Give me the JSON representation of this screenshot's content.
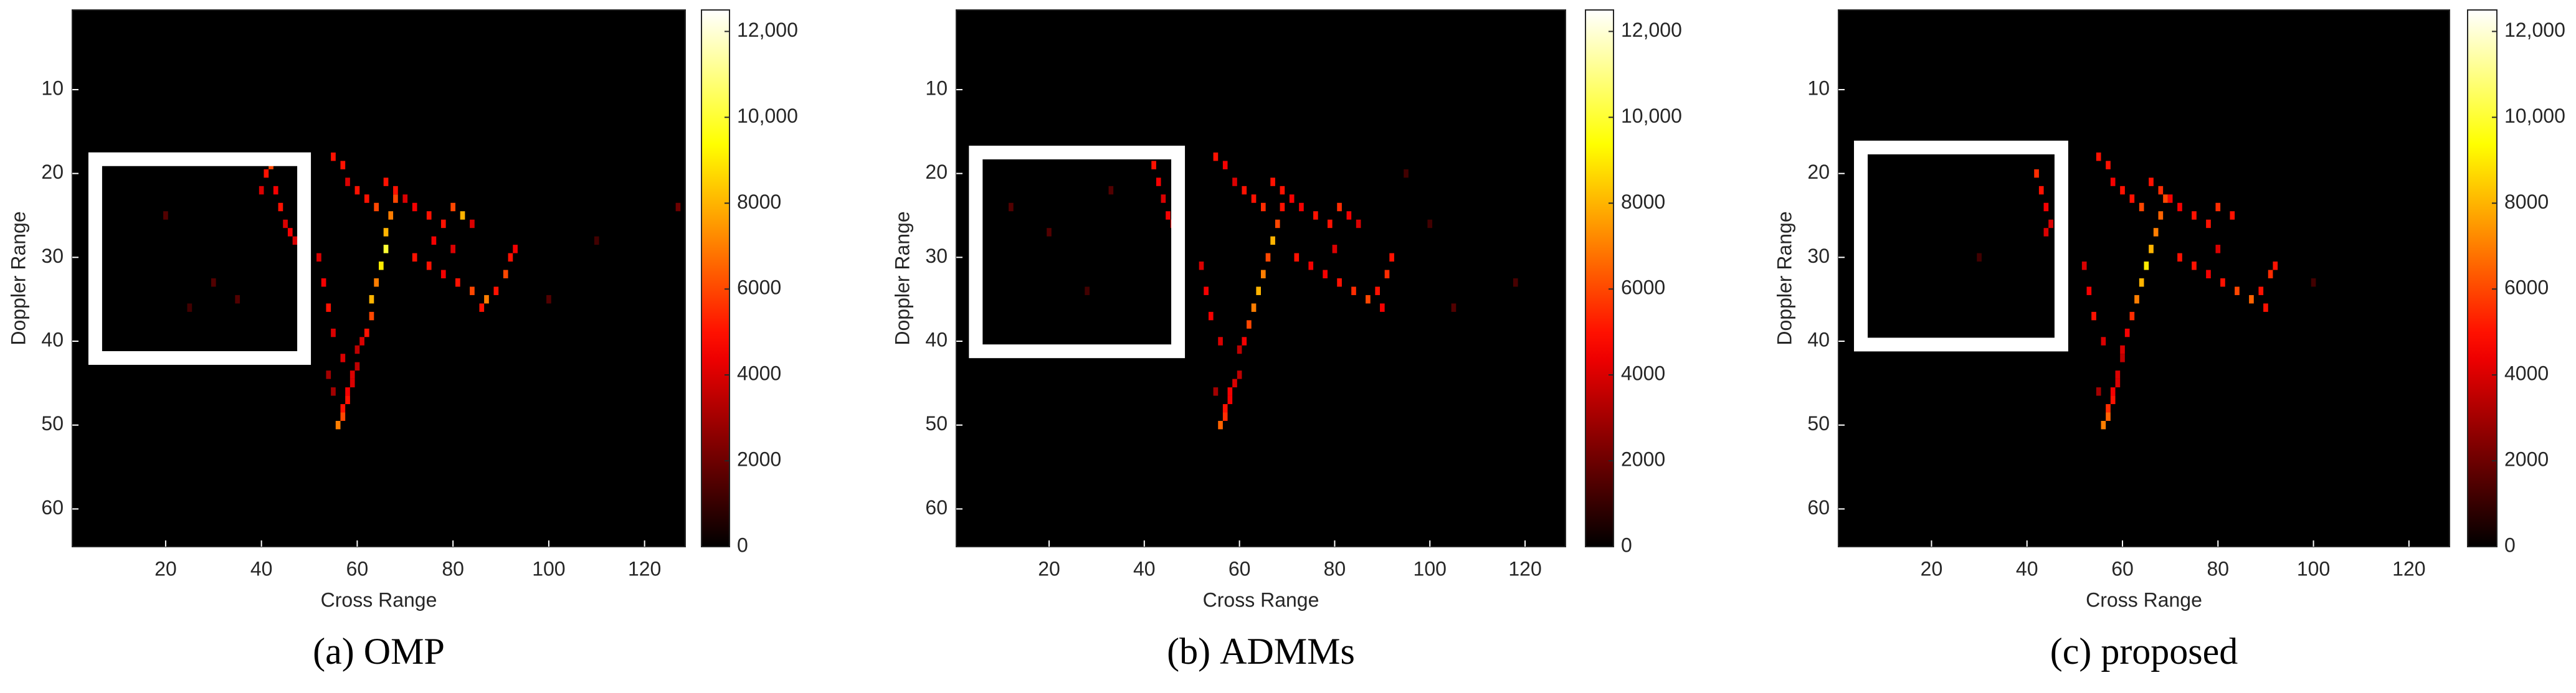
{
  "chart_data": [
    {
      "type": "heatmap",
      "caption_label": "(a)",
      "caption_text": "OMP",
      "xlabel": "Cross Range",
      "ylabel": "Doppler Range",
      "xlim": [
        0.5,
        128.5
      ],
      "ylim": [
        64.5,
        0.5
      ],
      "xticks": [
        20,
        40,
        60,
        80,
        100,
        120
      ],
      "yticks": [
        10,
        20,
        30,
        40,
        50,
        60
      ],
      "colormap": "hot",
      "clim": [
        0,
        12500
      ],
      "cticks": [
        0,
        2000,
        4000,
        6000,
        8000,
        {
          "value": 10000,
          "label": "10,000"
        },
        {
          "value": 12000,
          "label": "12,000"
        }
      ],
      "highlight_box": {
        "x": [
          5.3,
          48.9
        ],
        "y": [
          18.3,
          42
        ],
        "color": "#ffffff"
      },
      "cells": [
        [
          56,
          50,
          7000
        ],
        [
          57,
          49,
          6000
        ],
        [
          57,
          48,
          5000
        ],
        [
          58,
          47,
          5000
        ],
        [
          58,
          46,
          4500
        ],
        [
          59,
          45,
          4000
        ],
        [
          59,
          44,
          4000
        ],
        [
          60,
          43,
          3500
        ],
        [
          55,
          46,
          3000
        ],
        [
          54,
          44,
          3000
        ],
        [
          60,
          41,
          3500
        ],
        [
          61,
          40,
          4000
        ],
        [
          62,
          39,
          5000
        ],
        [
          63,
          37,
          6000
        ],
        [
          63,
          35,
          8000
        ],
        [
          64,
          33,
          7000
        ],
        [
          65,
          31,
          9000
        ],
        [
          66,
          29,
          10000
        ],
        [
          66,
          27,
          8000
        ],
        [
          67,
          25,
          7000
        ],
        [
          68,
          23,
          6000
        ],
        [
          55,
          18,
          5000
        ],
        [
          57,
          19,
          5000
        ],
        [
          58,
          21,
          4000
        ],
        [
          60,
          22,
          5000
        ],
        [
          62,
          23,
          5000
        ],
        [
          64,
          24,
          6000
        ],
        [
          66,
          21,
          5000
        ],
        [
          68,
          22,
          5000
        ],
        [
          70,
          23,
          4000
        ],
        [
          72,
          24,
          4500
        ],
        [
          75,
          25,
          5000
        ],
        [
          78,
          26,
          5000
        ],
        [
          80,
          24,
          6000
        ],
        [
          82,
          25,
          8000
        ],
        [
          84,
          26,
          4000
        ],
        [
          72,
          30,
          5000
        ],
        [
          75,
          31,
          5000
        ],
        [
          78,
          32,
          4500
        ],
        [
          81,
          33,
          5000
        ],
        [
          84,
          34,
          6000
        ],
        [
          87,
          35,
          7000
        ],
        [
          89,
          34,
          5000
        ],
        [
          91,
          32,
          6000
        ],
        [
          92,
          30,
          5000
        ],
        [
          93,
          29,
          4500
        ],
        [
          86,
          36,
          5000
        ],
        [
          80,
          29,
          4000
        ],
        [
          76,
          28,
          4500
        ],
        [
          52,
          30,
          4000
        ],
        [
          53,
          33,
          4500
        ],
        [
          54,
          36,
          5000
        ],
        [
          55,
          39,
          4000
        ],
        [
          57,
          42,
          4000
        ],
        [
          41,
          20,
          5000
        ],
        [
          42,
          19,
          6000
        ],
        [
          43,
          22,
          4500
        ],
        [
          44,
          24,
          5000
        ],
        [
          45,
          26,
          4000
        ],
        [
          46,
          27,
          4500
        ],
        [
          47,
          28,
          4000
        ],
        [
          40,
          22,
          4000
        ],
        [
          20,
          25,
          1500
        ],
        [
          30,
          33,
          1500
        ],
        [
          25,
          36,
          1200
        ],
        [
          100,
          35,
          1500
        ],
        [
          110,
          28,
          1200
        ],
        [
          127,
          24,
          2000
        ],
        [
          35,
          35,
          1500
        ]
      ]
    },
    {
      "type": "heatmap",
      "caption_label": "(b)",
      "caption_text": "ADMMs",
      "xlabel": "Cross Range",
      "ylabel": "Doppler Range",
      "xlim": [
        0.5,
        128.5
      ],
      "ylim": [
        64.5,
        0.5
      ],
      "xticks": [
        20,
        40,
        60,
        80,
        100,
        120
      ],
      "yticks": [
        10,
        20,
        30,
        40,
        50,
        60
      ],
      "colormap": "hot",
      "clim": [
        0,
        12500
      ],
      "cticks": [
        0,
        2000,
        4000,
        6000,
        8000,
        {
          "value": 10000,
          "label": "10,000"
        },
        {
          "value": 12000,
          "label": "12,000"
        }
      ],
      "highlight_box": {
        "x": [
          4.6,
          47.1
        ],
        "y": [
          17.5,
          41.2
        ],
        "color": "#ffffff"
      },
      "cells": [
        [
          56,
          50,
          6500
        ],
        [
          57,
          49,
          5500
        ],
        [
          57,
          48,
          5000
        ],
        [
          58,
          47,
          4500
        ],
        [
          58,
          46,
          4500
        ],
        [
          59,
          45,
          4000
        ],
        [
          60,
          44,
          3500
        ],
        [
          55,
          46,
          3000
        ],
        [
          60,
          41,
          3500
        ],
        [
          61,
          40,
          4500
        ],
        [
          62,
          38,
          6000
        ],
        [
          63,
          36,
          7000
        ],
        [
          64,
          34,
          8000
        ],
        [
          65,
          32,
          7000
        ],
        [
          66,
          30,
          6000
        ],
        [
          67,
          28,
          8000
        ],
        [
          68,
          26,
          6000
        ],
        [
          69,
          24,
          5000
        ],
        [
          55,
          18,
          5000
        ],
        [
          57,
          19,
          4500
        ],
        [
          59,
          21,
          4000
        ],
        [
          61,
          22,
          5000
        ],
        [
          63,
          23,
          5000
        ],
        [
          65,
          24,
          5500
        ],
        [
          67,
          21,
          5000
        ],
        [
          69,
          22,
          5000
        ],
        [
          71,
          23,
          4500
        ],
        [
          73,
          24,
          4500
        ],
        [
          76,
          25,
          5000
        ],
        [
          79,
          26,
          5000
        ],
        [
          81,
          24,
          5500
        ],
        [
          83,
          25,
          4500
        ],
        [
          85,
          26,
          4000
        ],
        [
          72,
          30,
          5000
        ],
        [
          75,
          31,
          4500
        ],
        [
          78,
          32,
          4500
        ],
        [
          81,
          33,
          5000
        ],
        [
          84,
          34,
          5500
        ],
        [
          87,
          35,
          6000
        ],
        [
          89,
          34,
          5000
        ],
        [
          91,
          32,
          5500
        ],
        [
          92,
          30,
          5000
        ],
        [
          90,
          36,
          4500
        ],
        [
          80,
          29,
          4000
        ],
        [
          52,
          31,
          4000
        ],
        [
          53,
          34,
          4500
        ],
        [
          54,
          37,
          4500
        ],
        [
          56,
          40,
          4000
        ],
        [
          42,
          19,
          5000
        ],
        [
          43,
          21,
          4500
        ],
        [
          44,
          23,
          4000
        ],
        [
          45,
          25,
          4500
        ],
        [
          46,
          26,
          4000
        ],
        [
          12,
          24,
          1500
        ],
        [
          20,
          27,
          1500
        ],
        [
          28,
          34,
          1200
        ],
        [
          33,
          22,
          1500
        ],
        [
          100,
          26,
          1200
        ],
        [
          105,
          36,
          1500
        ],
        [
          118,
          33,
          1300
        ],
        [
          95,
          20,
          1200
        ]
      ]
    },
    {
      "type": "heatmap",
      "caption_label": "(c)",
      "caption_text": "proposed",
      "xlabel": "Cross Range",
      "ylabel": "Doppler Range",
      "xlim": [
        0.5,
        128.5
      ],
      "ylim": [
        64.5,
        0.5
      ],
      "xticks": [
        20,
        40,
        60,
        80,
        100,
        120
      ],
      "yticks": [
        10,
        20,
        30,
        40,
        50,
        60
      ],
      "colormap": "hot",
      "clim": [
        0,
        12500
      ],
      "cticks": [
        0,
        2000,
        4000,
        6000,
        8000,
        {
          "value": 10000,
          "label": "10,000"
        },
        {
          "value": 12000,
          "label": "12,000"
        }
      ],
      "highlight_box": {
        "x": [
          5.2,
          47.2
        ],
        "y": [
          16.9,
          40.4
        ],
        "color": "#ffffff"
      },
      "cells": [
        [
          56,
          50,
          7000
        ],
        [
          57,
          49,
          6500
        ],
        [
          57,
          48,
          5500
        ],
        [
          58,
          47,
          5000
        ],
        [
          58,
          46,
          4500
        ],
        [
          59,
          45,
          4000
        ],
        [
          59,
          44,
          4000
        ],
        [
          60,
          42,
          3500
        ],
        [
          55,
          46,
          3000
        ],
        [
          60,
          41,
          4000
        ],
        [
          61,
          39,
          4500
        ],
        [
          62,
          37,
          5500
        ],
        [
          63,
          35,
          7000
        ],
        [
          64,
          33,
          8000
        ],
        [
          65,
          31,
          9000
        ],
        [
          66,
          29,
          8000
        ],
        [
          67,
          27,
          7000
        ],
        [
          68,
          25,
          6500
        ],
        [
          69,
          23,
          6000
        ],
        [
          55,
          18,
          5000
        ],
        [
          57,
          19,
          5000
        ],
        [
          58,
          21,
          4500
        ],
        [
          60,
          22,
          5000
        ],
        [
          62,
          23,
          5000
        ],
        [
          64,
          24,
          6000
        ],
        [
          66,
          21,
          5000
        ],
        [
          68,
          22,
          5500
        ],
        [
          70,
          23,
          4500
        ],
        [
          72,
          24,
          4500
        ],
        [
          75,
          25,
          5000
        ],
        [
          78,
          26,
          5000
        ],
        [
          80,
          24,
          5500
        ],
        [
          83,
          25,
          5000
        ],
        [
          72,
          30,
          5000
        ],
        [
          75,
          31,
          5000
        ],
        [
          78,
          32,
          4500
        ],
        [
          81,
          33,
          5000
        ],
        [
          84,
          34,
          6000
        ],
        [
          87,
          35,
          6500
        ],
        [
          89,
          34,
          5000
        ],
        [
          91,
          32,
          5500
        ],
        [
          92,
          31,
          5000
        ],
        [
          90,
          36,
          5000
        ],
        [
          80,
          29,
          4000
        ],
        [
          52,
          31,
          4000
        ],
        [
          53,
          34,
          4500
        ],
        [
          54,
          37,
          5000
        ],
        [
          56,
          40,
          4000
        ],
        [
          42,
          20,
          5500
        ],
        [
          43,
          22,
          5000
        ],
        [
          44,
          24,
          4500
        ],
        [
          45,
          26,
          4000
        ],
        [
          44,
          27,
          4000
        ],
        [
          30,
          30,
          1200
        ],
        [
          100,
          33,
          1200
        ]
      ]
    }
  ]
}
